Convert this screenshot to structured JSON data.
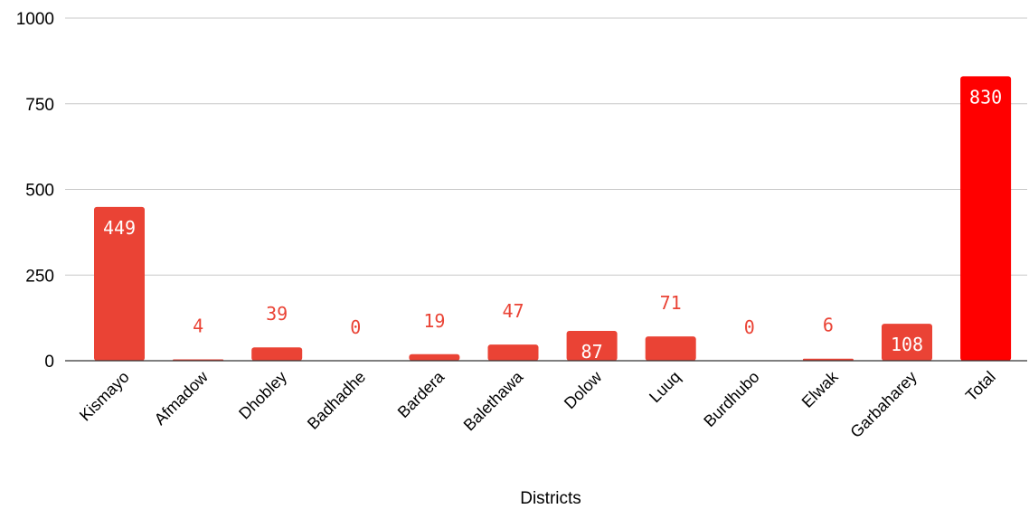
{
  "chart_data": {
    "type": "bar",
    "title": "",
    "xlabel": "Districts",
    "ylabel": "",
    "categories": [
      "Kismayo",
      "Afmadow",
      "Dhobley",
      "Badhadhe",
      "Bardera",
      "Balethawa",
      "Dolow",
      "Luuq",
      "Burdhubo",
      "Elwak",
      "Garbaharey",
      "Total"
    ],
    "values": [
      449,
      4,
      39,
      0,
      19,
      47,
      87,
      71,
      0,
      6,
      108,
      830
    ],
    "data_labels": [
      "449",
      "4",
      "39",
      "0",
      "19",
      "47",
      "87",
      "71",
      "0",
      "6",
      "108",
      "830"
    ],
    "ylim": [
      0,
      1000
    ],
    "yticks": [
      0,
      250,
      500,
      750,
      1000
    ],
    "ytick_labels": [
      "0",
      "250",
      "500",
      "750",
      "1000"
    ],
    "grid": true,
    "legend": "none",
    "colors": {
      "bar": "#ea4335",
      "total_bar": "#ff0000",
      "label_outside": "#ea4335",
      "label_inside": "#ffffff"
    }
  }
}
